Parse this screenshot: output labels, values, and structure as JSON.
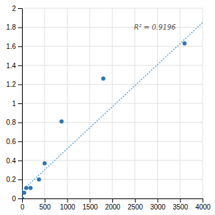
{
  "chart_data": {
    "type": "scatter",
    "series": [
      {
        "type": "scatter",
        "color": "#2E74B5",
        "marker": "circle",
        "x": [
          0,
          47,
          94,
          188,
          375,
          500,
          875,
          1800,
          3600
        ],
        "values": [
          0.0,
          0.06,
          0.11,
          0.11,
          0.2,
          0.37,
          0.81,
          1.26,
          1.63
        ]
      },
      {
        "type": "line",
        "color": "#5BA3D9",
        "line_style": "dotted",
        "x": [
          0,
          4000
        ],
        "values": [
          0.08,
          1.85
        ]
      }
    ],
    "annotations": [
      {
        "text": "R² = 0.9196",
        "x": 2480,
        "y": 1.83
      }
    ],
    "xlim": [
      0,
      4000
    ],
    "ylim": [
      0,
      2
    ],
    "xticks": [
      0,
      500,
      1000,
      1500,
      2000,
      2500,
      3000,
      3500,
      4000
    ],
    "yticks": [
      0,
      0.2,
      0.4,
      0.6,
      0.8,
      1,
      1.2,
      1.4,
      1.6,
      1.8,
      2
    ],
    "grid": true
  }
}
